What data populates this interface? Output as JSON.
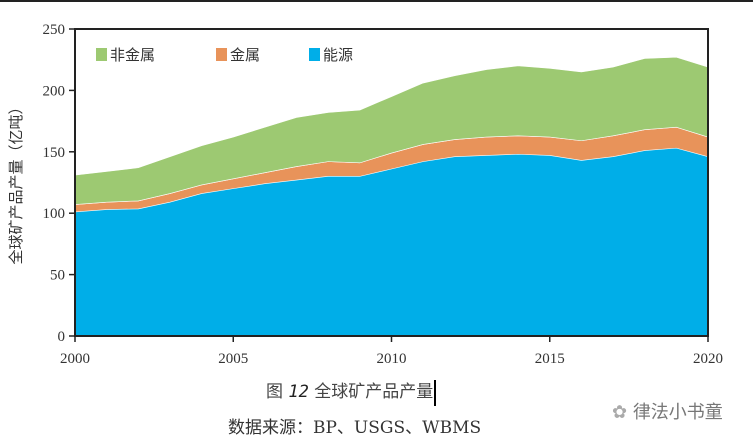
{
  "chart_data": {
    "type": "area",
    "stacked": true,
    "x": [
      2000,
      2001,
      2002,
      2003,
      2004,
      2005,
      2006,
      2007,
      2008,
      2009,
      2010,
      2011,
      2012,
      2013,
      2014,
      2015,
      2016,
      2017,
      2018,
      2019,
      2020
    ],
    "series": [
      {
        "name": "能源",
        "color": "#00aee8",
        "values": [
          101,
          103,
          103.5,
          109,
          116,
          120,
          124,
          127,
          130,
          130,
          136,
          142,
          146,
          147,
          148,
          147,
          143,
          146,
          151,
          153,
          146
        ]
      },
      {
        "name": "金属",
        "color": "#e8935a",
        "values": [
          6,
          6,
          6.5,
          7,
          7,
          8,
          9,
          11,
          12,
          11,
          13,
          14,
          14,
          15,
          15,
          15,
          16,
          17,
          17,
          17,
          16
        ]
      },
      {
        "name": "非金属",
        "color": "#9dc972",
        "values": [
          24,
          25,
          27,
          30,
          32,
          34,
          37,
          40,
          40,
          43,
          46,
          50,
          52,
          55,
          57,
          56,
          56,
          56,
          58,
          57,
          57
        ]
      }
    ],
    "legend_order": [
      "非金属",
      "金属",
      "能源"
    ],
    "legend_placement": "top-left",
    "xlabel": "",
    "ylabel": "全球矿产品产量（亿吨）",
    "xlim": [
      2000,
      2020
    ],
    "ylim": [
      0,
      250
    ],
    "xticks": [
      "2000",
      "2005",
      "2010",
      "2015",
      "2020"
    ],
    "yticks": [
      "0",
      "50",
      "100",
      "150",
      "200",
      "250"
    ],
    "grid": false
  },
  "caption": {
    "prefix": "图 ",
    "number": "12",
    "title": " 全球矿产品产量"
  },
  "source": "数据来源：BP、USGS、WBMS",
  "watermark": "律法小书童"
}
